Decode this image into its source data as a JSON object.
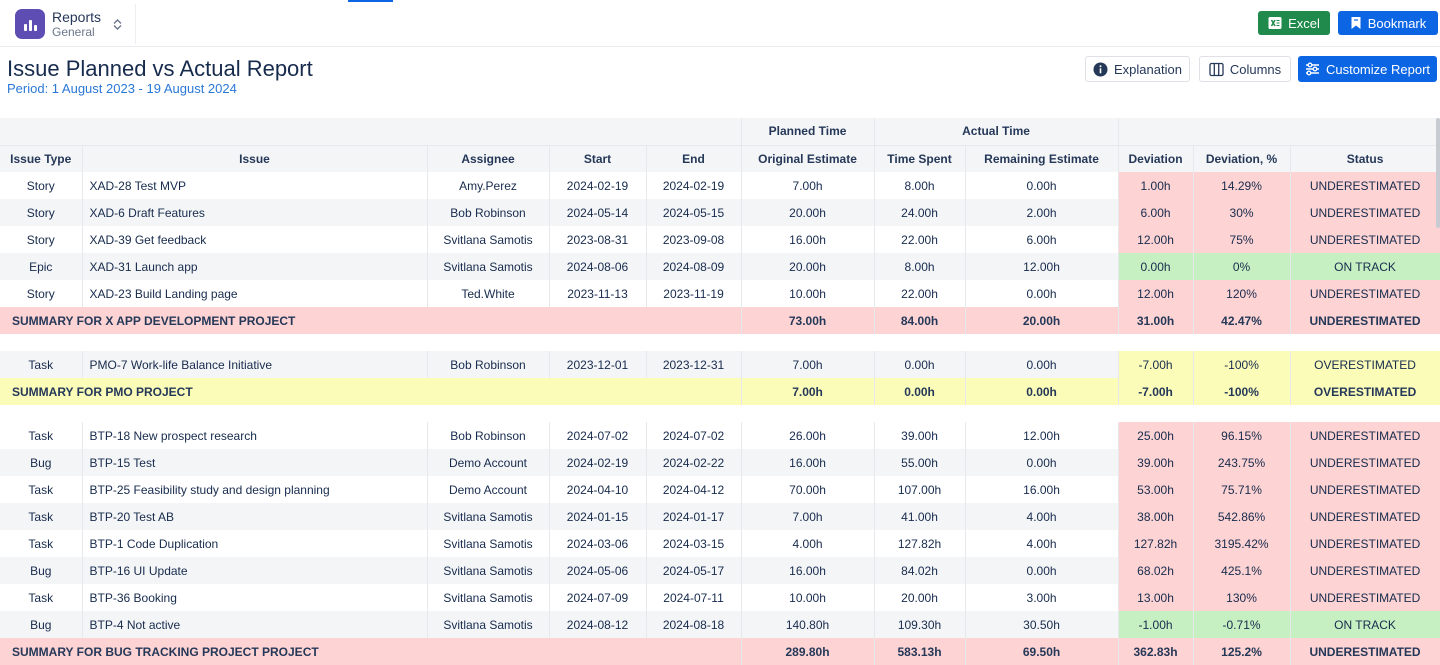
{
  "app": {
    "title": "Reports",
    "subtitle": "General",
    "logo_icon": "bar-chart-icon",
    "accent_color": "#5e4db2"
  },
  "toolbar": {
    "excel_label": "Excel",
    "bookmark_label": "Bookmark",
    "excel_color": "#1f8a4b",
    "primary_color": "#0c66e4"
  },
  "report": {
    "title": "Issue Planned vs Actual Report",
    "period": "Period: 1 August 2023 - 19 August 2024",
    "explanation_label": "Explanation",
    "columns_label": "Columns",
    "customize_label": "Customize Report"
  },
  "table": {
    "group_headers": {
      "planned": "Planned Time",
      "actual": "Actual Time"
    },
    "headers": [
      "Issue Type",
      "Issue",
      "Assignee",
      "Start",
      "End",
      "Original Estimate",
      "Time Spent",
      "Remaining Estimate",
      "Deviation",
      "Deviation, %",
      "Status"
    ],
    "status_colors": {
      "UNDERESTIMATED": "#fdd3d3",
      "ON TRACK": "#c7f0c2",
      "OVERESTIMATED": "#fbfcb8"
    },
    "groups": [
      {
        "rows": [
          {
            "type": "Story",
            "issue": "XAD-28 Test MVP",
            "assignee": "Amy.Perez",
            "start": "2024-02-19",
            "end": "2024-02-19",
            "original": "7.00h",
            "spent": "8.00h",
            "remaining": "0.00h",
            "deviation": "1.00h",
            "deviation_pct": "14.29%",
            "status": "UNDERESTIMATED"
          },
          {
            "type": "Story",
            "issue": "XAD-6 Draft Features",
            "assignee": "Bob Robinson",
            "start": "2024-05-14",
            "end": "2024-05-15",
            "original": "20.00h",
            "spent": "24.00h",
            "remaining": "2.00h",
            "deviation": "6.00h",
            "deviation_pct": "30%",
            "status": "UNDERESTIMATED"
          },
          {
            "type": "Story",
            "issue": "XAD-39 Get feedback",
            "assignee": "Svitlana Samotis",
            "start": "2023-08-31",
            "end": "2023-09-08",
            "original": "16.00h",
            "spent": "22.00h",
            "remaining": "6.00h",
            "deviation": "12.00h",
            "deviation_pct": "75%",
            "status": "UNDERESTIMATED"
          },
          {
            "type": "Epic",
            "issue": "XAD-31 Launch app",
            "assignee": "Svitlana Samotis",
            "start": "2024-08-06",
            "end": "2024-08-09",
            "original": "20.00h",
            "spent": "8.00h",
            "remaining": "12.00h",
            "deviation": "0.00h",
            "deviation_pct": "0%",
            "status": "ON TRACK"
          },
          {
            "type": "Story",
            "issue": "XAD-23 Build Landing page",
            "assignee": "Ted.White",
            "start": "2023-11-13",
            "end": "2023-11-19",
            "original": "10.00h",
            "spent": "22.00h",
            "remaining": "0.00h",
            "deviation": "12.00h",
            "deviation_pct": "120%",
            "status": "UNDERESTIMATED"
          }
        ],
        "summary": {
          "label": "SUMMARY FOR X APP DEVELOPMENT PROJECT",
          "original": "73.00h",
          "spent": "84.00h",
          "remaining": "20.00h",
          "deviation": "31.00h",
          "deviation_pct": "42.47%",
          "status": "UNDERESTIMATED"
        }
      },
      {
        "rows": [
          {
            "type": "Task",
            "issue": "PMO-7 Work-life Balance Initiative",
            "assignee": "Bob Robinson",
            "start": "2023-12-01",
            "end": "2023-12-31",
            "original": "7.00h",
            "spent": "0.00h",
            "remaining": "0.00h",
            "deviation": "-7.00h",
            "deviation_pct": "-100%",
            "status": "OVERESTIMATED"
          }
        ],
        "summary": {
          "label": "SUMMARY FOR PMO PROJECT",
          "original": "7.00h",
          "spent": "0.00h",
          "remaining": "0.00h",
          "deviation": "-7.00h",
          "deviation_pct": "-100%",
          "status": "OVERESTIMATED"
        }
      },
      {
        "rows": [
          {
            "type": "Task",
            "issue": "BTP-18 New prospect research",
            "assignee": "Bob Robinson",
            "start": "2024-07-02",
            "end": "2024-07-02",
            "original": "26.00h",
            "spent": "39.00h",
            "remaining": "12.00h",
            "deviation": "25.00h",
            "deviation_pct": "96.15%",
            "status": "UNDERESTIMATED"
          },
          {
            "type": "Bug",
            "issue": "BTP-15 Test",
            "assignee": "Demo Account",
            "start": "2024-02-19",
            "end": "2024-02-22",
            "original": "16.00h",
            "spent": "55.00h",
            "remaining": "0.00h",
            "deviation": "39.00h",
            "deviation_pct": "243.75%",
            "status": "UNDERESTIMATED"
          },
          {
            "type": "Task",
            "issue": "BTP-25 Feasibility study and design planning",
            "assignee": "Demo Account",
            "start": "2024-04-10",
            "end": "2024-04-12",
            "original": "70.00h",
            "spent": "107.00h",
            "remaining": "16.00h",
            "deviation": "53.00h",
            "deviation_pct": "75.71%",
            "status": "UNDERESTIMATED"
          },
          {
            "type": "Task",
            "issue": "BTP-20 Test AB",
            "assignee": "Svitlana Samotis",
            "start": "2024-01-15",
            "end": "2024-01-17",
            "original": "7.00h",
            "spent": "41.00h",
            "remaining": "4.00h",
            "deviation": "38.00h",
            "deviation_pct": "542.86%",
            "status": "UNDERESTIMATED"
          },
          {
            "type": "Task",
            "issue": "BTP-1 Code Duplication",
            "assignee": "Svitlana Samotis",
            "start": "2024-03-06",
            "end": "2024-03-15",
            "original": "4.00h",
            "spent": "127.82h",
            "remaining": "4.00h",
            "deviation": "127.82h",
            "deviation_pct": "3195.42%",
            "status": "UNDERESTIMATED"
          },
          {
            "type": "Bug",
            "issue": "BTP-16 UI Update",
            "assignee": "Svitlana Samotis",
            "start": "2024-05-06",
            "end": "2024-05-17",
            "original": "16.00h",
            "spent": "84.02h",
            "remaining": "0.00h",
            "deviation": "68.02h",
            "deviation_pct": "425.1%",
            "status": "UNDERESTIMATED"
          },
          {
            "type": "Task",
            "issue": "BTP-36 Booking",
            "assignee": "Svitlana Samotis",
            "start": "2024-07-09",
            "end": "2024-07-11",
            "original": "10.00h",
            "spent": "20.00h",
            "remaining": "3.00h",
            "deviation": "13.00h",
            "deviation_pct": "130%",
            "status": "UNDERESTIMATED"
          },
          {
            "type": "Bug",
            "issue": "BTP-4 Not active",
            "assignee": "Svitlana Samotis",
            "start": "2024-08-12",
            "end": "2024-08-18",
            "original": "140.80h",
            "spent": "109.30h",
            "remaining": "30.50h",
            "deviation": "-1.00h",
            "deviation_pct": "-0.71%",
            "status": "ON TRACK"
          }
        ],
        "summary": {
          "label": "SUMMARY FOR BUG TRACKING PROJECT PROJECT",
          "original": "289.80h",
          "spent": "583.13h",
          "remaining": "69.50h",
          "deviation": "362.83h",
          "deviation_pct": "125.2%",
          "status": "UNDERESTIMATED"
        }
      }
    ]
  }
}
